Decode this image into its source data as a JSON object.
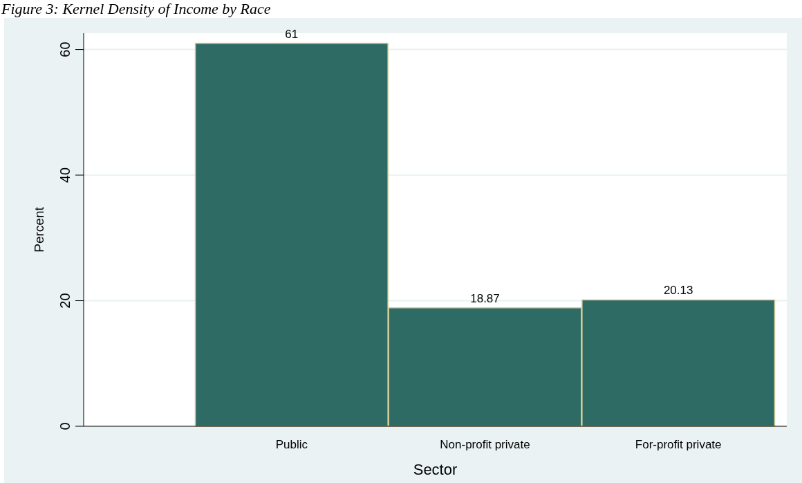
{
  "chart_data": {
    "type": "bar",
    "title": "Figure 3: Kernel Density of Income by Race",
    "xlabel": "Sector",
    "ylabel": "Percent",
    "categories": [
      "Public",
      "Non-profit private",
      "For-profit private"
    ],
    "values": [
      61,
      18.87,
      20.13
    ],
    "color": "#2e6b65",
    "data_labels": true,
    "ylim": [
      0,
      62.6
    ],
    "yticks": [
      0,
      20,
      40,
      60
    ],
    "grid": "y"
  }
}
